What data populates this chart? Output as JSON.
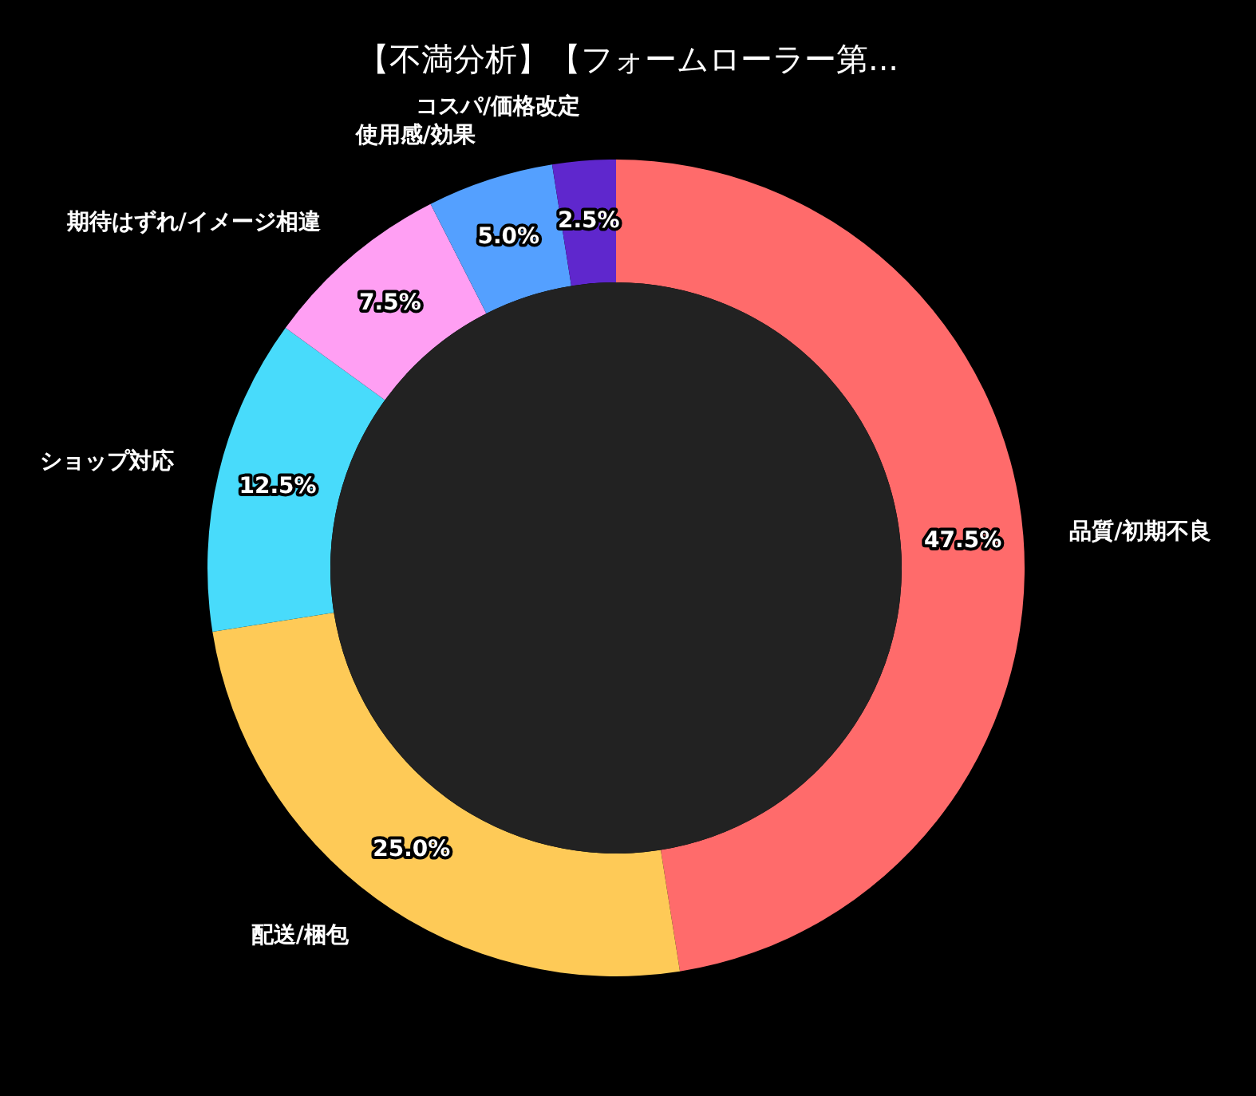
{
  "chart_data": {
    "type": "donut",
    "title": "【不満分析】【フォームローラー第...",
    "categories": [
      "品質/初期不良",
      "配送/梱包",
      "ショップ対応",
      "期待はずれ/イメージ相違",
      "使用感/効果",
      "コスパ/価格改定"
    ],
    "values": [
      47.5,
      25.0,
      12.5,
      7.5,
      5.0,
      2.5
    ],
    "colors": [
      "#ff6b6b",
      "#feca57",
      "#48dbfb",
      "#ff9ff3",
      "#54a0ff",
      "#5f27cd"
    ],
    "value_labels": [
      "47.5%",
      "25.0%",
      "12.5%",
      "7.5%",
      "5.0%",
      "2.5%"
    ]
  }
}
